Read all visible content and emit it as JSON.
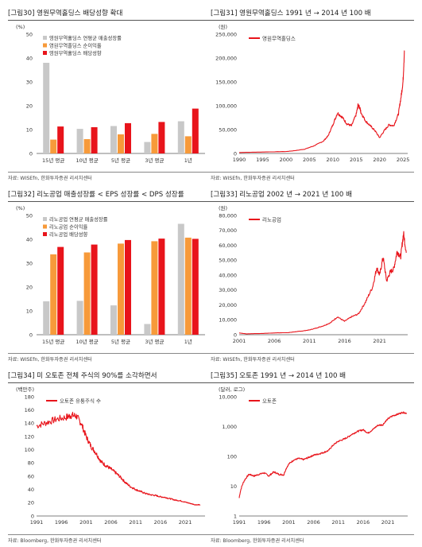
{
  "panels": [
    {
      "id": "p30",
      "title": "[그림30] 영원무역홀딩스 배당성향 확대",
      "source": "자료: WISEfn, 한화투자증권 리서치센터"
    },
    {
      "id": "p31",
      "title": "[그림31] 영원무역홀딩스 1991 년 → 2014 년 100 배",
      "source": "자료: WISEfn, 한화투자증권 리서치센터"
    },
    {
      "id": "p32",
      "title": "[그림32] 리노공업 매출성장률 < EPS 성장률 < DPS 성장률",
      "source": "자료: WISEfn, 한화투자증권 리서치센터"
    },
    {
      "id": "p33",
      "title": "[그림33] 리노공업 2002 년 → 2021 년 100 배",
      "source": "자료: WISEfn, 한화투자증권 리서치센터"
    },
    {
      "id": "p34",
      "title": "[그림34] 미 오토존 전체 주식의 90%를 소각하면서",
      "source": "자료: Bloomberg, 한화투자증권 리서치센터"
    },
    {
      "id": "p35",
      "title": "[그림35] 오토존 1991 년 → 2014 년 100 배",
      "source": "자료: Bloomberg, 한화투자증권 리서치센터"
    }
  ],
  "chart_data": [
    {
      "type": "bar",
      "unit": "(%)",
      "categories": [
        "15년 평균",
        "10년 평균",
        "5년 평균",
        "3년 평균",
        "1년"
      ],
      "series": [
        {
          "name": "영원무역홀딩스 연평균 매출성장률",
          "color": "#c8c8c8",
          "values": [
            38,
            10.3,
            11.5,
            4.8,
            13.5
          ]
        },
        {
          "name": "영원무역홀딩스 순이익률",
          "color": "#f79a3a",
          "values": [
            5.8,
            6,
            8,
            8.2,
            7.2
          ]
        },
        {
          "name": "영원무역홀딩스 배당성향",
          "color": "#e8141b",
          "values": [
            11.3,
            11,
            12.7,
            13.2,
            18.8
          ]
        }
      ],
      "ylim": [
        0,
        50
      ],
      "yticks": [
        "0",
        "10",
        "20",
        "30",
        "40",
        "50"
      ],
      "legend": "top-left"
    },
    {
      "type": "line",
      "unit": "(원)",
      "series": [
        {
          "name": "영원무역홀딩스",
          "color": "#e8141b"
        }
      ],
      "xlim": [
        1990,
        2026
      ],
      "xticks": [
        "1990",
        "1995",
        "2000",
        "2005",
        "2010",
        "2015",
        "2020",
        "2025"
      ],
      "ylim": [
        0,
        250000
      ],
      "yticks": [
        "0",
        "50,000",
        "100,000",
        "150,000",
        "200,000",
        "250,000"
      ],
      "points": [
        [
          1990,
          2000
        ],
        [
          1995,
          3000
        ],
        [
          2000,
          4000
        ],
        [
          2002,
          6000
        ],
        [
          2004,
          9000
        ],
        [
          2006,
          16000
        ],
        [
          2008,
          26000
        ],
        [
          2009,
          37000
        ],
        [
          2010,
          60000
        ],
        [
          2011,
          85000
        ],
        [
          2012,
          76000
        ],
        [
          2013,
          62000
        ],
        [
          2014,
          58000
        ],
        [
          2015,
          82000
        ],
        [
          2015.4,
          102000
        ],
        [
          2015.8,
          95000
        ],
        [
          2016,
          86000
        ],
        [
          2017,
          68000
        ],
        [
          2018,
          58000
        ],
        [
          2019,
          48000
        ],
        [
          2020,
          33000
        ],
        [
          2021,
          48000
        ],
        [
          2022,
          60000
        ],
        [
          2023,
          58000
        ],
        [
          2024,
          82000
        ],
        [
          2024.6,
          120000
        ],
        [
          2025,
          150000
        ],
        [
          2025.3,
          215000
        ]
      ],
      "legend": "top-left"
    },
    {
      "type": "bar",
      "unit": "(%)",
      "categories": [
        "15년 평균",
        "10년 평균",
        "5년 평균",
        "3년 평균",
        "1년"
      ],
      "series": [
        {
          "name": "리노공업 연평균 매출성장률",
          "color": "#c8c8c8",
          "values": [
            14,
            14.2,
            12.3,
            4.5,
            46.5
          ]
        },
        {
          "name": "리노공업 순이익률",
          "color": "#f79a3a",
          "values": [
            33.7,
            34.5,
            38.2,
            39.2,
            40.7
          ]
        },
        {
          "name": "리노공업 배당성향",
          "color": "#e8141b",
          "values": [
            36.8,
            37.8,
            39.7,
            40.3,
            40.2
          ]
        }
      ],
      "ylim": [
        0,
        50
      ],
      "yticks": [
        "0",
        "10",
        "20",
        "30",
        "40",
        "50"
      ],
      "legend": "top-left"
    },
    {
      "type": "line",
      "unit": "(원)",
      "series": [
        {
          "name": "리노공업",
          "color": "#e8141b"
        }
      ],
      "xlim": [
        2001,
        2025
      ],
      "xticks": [
        "2001",
        "2006",
        "2011",
        "2016",
        "2021"
      ],
      "ylim": [
        0,
        80000
      ],
      "yticks": [
        "0",
        "10,000",
        "20,000",
        "30,000",
        "40,000",
        "50,000",
        "60,000",
        "70,000",
        "80,000"
      ],
      "points": [
        [
          2001,
          1200
        ],
        [
          2002,
          600
        ],
        [
          2004,
          800
        ],
        [
          2006,
          1200
        ],
        [
          2008,
          1400
        ],
        [
          2009,
          2000
        ],
        [
          2010,
          2500
        ],
        [
          2011,
          3200
        ],
        [
          2012,
          4500
        ],
        [
          2013,
          6000
        ],
        [
          2014,
          8000
        ],
        [
          2015,
          12000
        ],
        [
          2016,
          9000
        ],
        [
          2017,
          12000
        ],
        [
          2018,
          14000
        ],
        [
          2019,
          22000
        ],
        [
          2020,
          32000
        ],
        [
          2020.6,
          45000
        ],
        [
          2021,
          40000
        ],
        [
          2021.5,
          52000
        ],
        [
          2022,
          36000
        ],
        [
          2022.5,
          42000
        ],
        [
          2023,
          44000
        ],
        [
          2023.5,
          56000
        ],
        [
          2024,
          52000
        ],
        [
          2024.4,
          68000
        ],
        [
          2024.8,
          55000
        ]
      ],
      "legend": "top-left"
    },
    {
      "type": "line",
      "unit": "(백만주)",
      "series": [
        {
          "name": "오토존 유통주식 수",
          "color": "#e8141b"
        }
      ],
      "xlim": [
        1991,
        2025
      ],
      "xticks": [
        "1991",
        "1996",
        "2001",
        "2006",
        "2011",
        "2016",
        "2021"
      ],
      "ylim": [
        0,
        180
      ],
      "yticks": [
        "0",
        "20",
        "40",
        "60",
        "80",
        "100",
        "120",
        "140",
        "160",
        "180"
      ],
      "points": [
        [
          1991,
          136
        ],
        [
          1993,
          141
        ],
        [
          1995,
          146
        ],
        [
          1997,
          149
        ],
        [
          1998,
          152
        ],
        [
          1999,
          151
        ],
        [
          2000,
          140
        ],
        [
          2001,
          120
        ],
        [
          2002,
          105
        ],
        [
          2003,
          95
        ],
        [
          2004,
          82
        ],
        [
          2005,
          76
        ],
        [
          2006,
          71
        ],
        [
          2007,
          65
        ],
        [
          2008,
          58
        ],
        [
          2009,
          50
        ],
        [
          2010,
          44
        ],
        [
          2011,
          40
        ],
        [
          2012,
          37
        ],
        [
          2013,
          34
        ],
        [
          2014,
          32
        ],
        [
          2015,
          31
        ],
        [
          2016,
          29
        ],
        [
          2017,
          28
        ],
        [
          2018,
          26
        ],
        [
          2019,
          24
        ],
        [
          2020,
          23
        ],
        [
          2021,
          21
        ],
        [
          2022,
          19
        ],
        [
          2023,
          17
        ],
        [
          2024,
          17
        ]
      ],
      "legend": "top-left"
    },
    {
      "type": "line",
      "unit": "(달러, 로그)",
      "series": [
        {
          "name": "오토존",
          "color": "#e8141b"
        }
      ],
      "xlim": [
        1991,
        2025
      ],
      "xticks": [
        "1991",
        "1996",
        "2001",
        "2006",
        "2011",
        "2016",
        "2021"
      ],
      "ylog": true,
      "ylim": [
        1,
        10000
      ],
      "yticks": [
        "1",
        "10",
        "100",
        "1,000",
        "10,000"
      ],
      "points": [
        [
          1991,
          4
        ],
        [
          1992,
          15
        ],
        [
          1993,
          25
        ],
        [
          1994,
          22
        ],
        [
          1995,
          25
        ],
        [
          1996,
          28
        ],
        [
          1997,
          22
        ],
        [
          1998,
          30
        ],
        [
          1999,
          25
        ],
        [
          2000,
          24
        ],
        [
          2001,
          55
        ],
        [
          2002,
          75
        ],
        [
          2003,
          85
        ],
        [
          2004,
          78
        ],
        [
          2005,
          92
        ],
        [
          2006,
          110
        ],
        [
          2007,
          120
        ],
        [
          2008,
          135
        ],
        [
          2009,
          155
        ],
        [
          2010,
          240
        ],
        [
          2011,
          320
        ],
        [
          2012,
          370
        ],
        [
          2013,
          450
        ],
        [
          2014,
          580
        ],
        [
          2015,
          700
        ],
        [
          2016,
          780
        ],
        [
          2017,
          600
        ],
        [
          2018,
          800
        ],
        [
          2019,
          1100
        ],
        [
          2020,
          1150
        ],
        [
          2021,
          1800
        ],
        [
          2022,
          2300
        ],
        [
          2023,
          2600
        ],
        [
          2024,
          3000
        ],
        [
          2024.8,
          2800
        ]
      ],
      "legend": "top-left"
    }
  ]
}
